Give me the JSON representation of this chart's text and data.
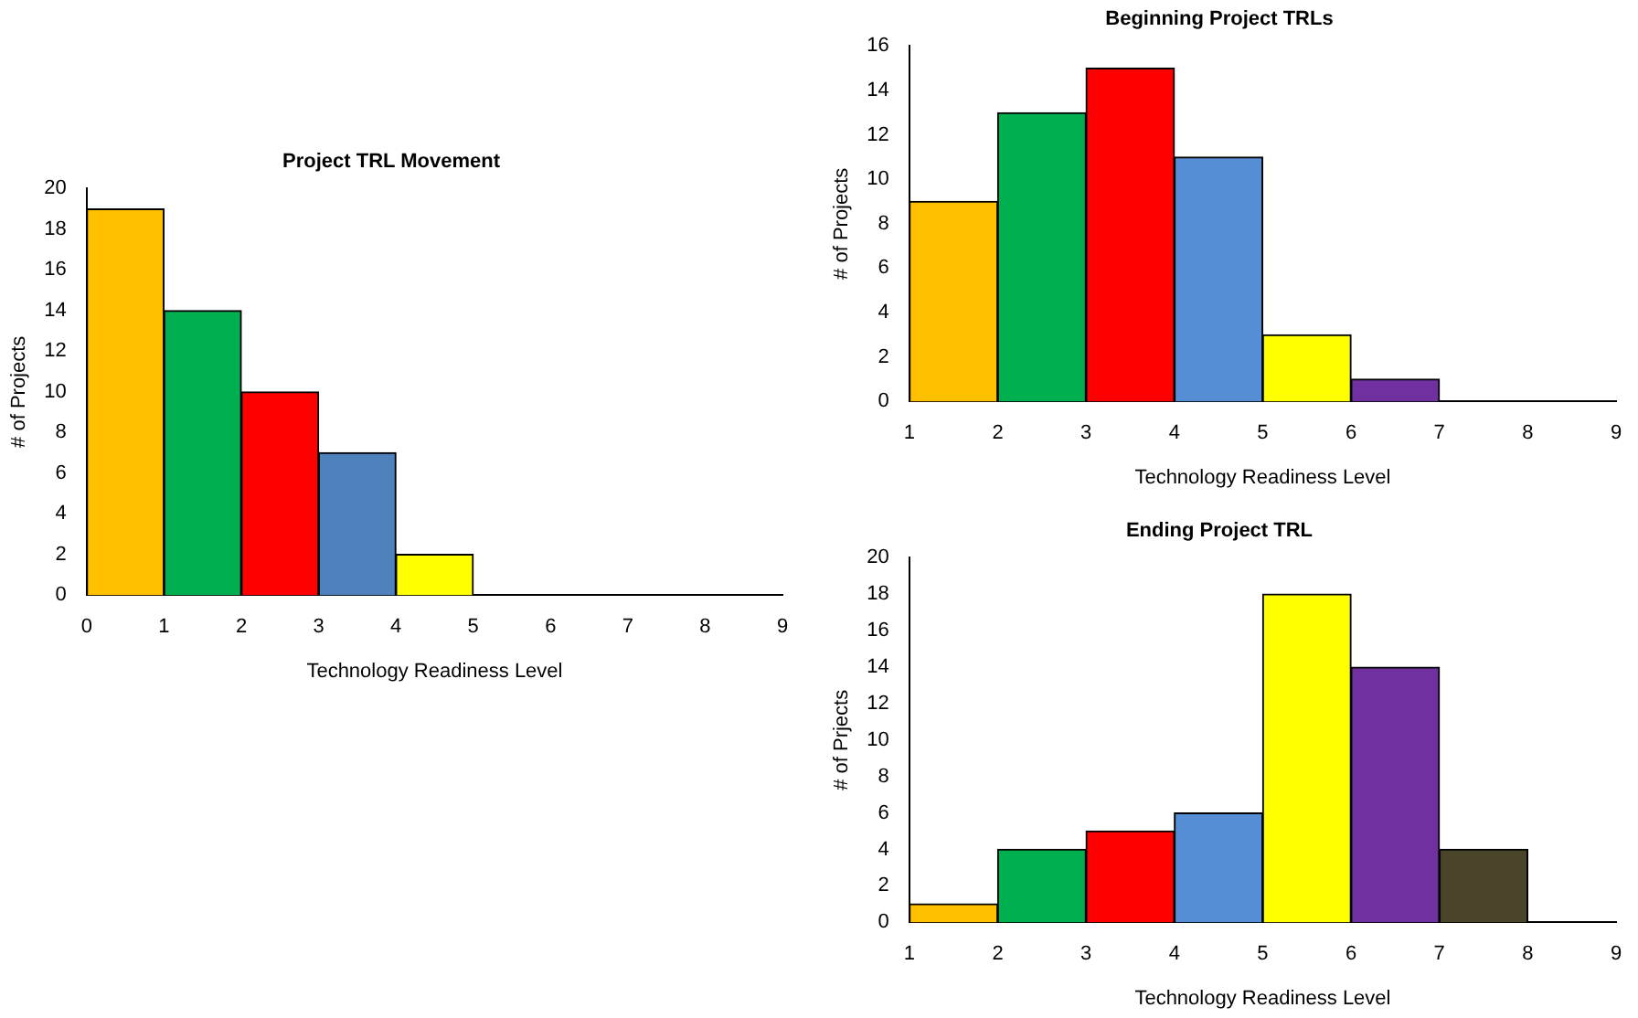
{
  "chart_data": [
    {
      "type": "histogram",
      "title": "Project TRL Movement",
      "xlabel": "Technology Readiness Level",
      "ylabel": "# of Projects",
      "bins": [
        0,
        1,
        2,
        3,
        4,
        5,
        6,
        7,
        8,
        9
      ],
      "values": [
        19,
        14,
        10,
        7,
        2,
        0,
        0,
        0,
        0
      ],
      "colors": [
        "#ffc000",
        "#00b050",
        "#ff0000",
        "#4f81bd",
        "#ffff00",
        "#7030a0",
        "#7030a0",
        "#7030a0",
        "#7030a0"
      ],
      "xlim": [
        0,
        9
      ],
      "xticks": [
        0,
        1,
        2,
        3,
        4,
        5,
        6,
        7,
        8,
        9
      ],
      "ylim": [
        0,
        20
      ],
      "yticks": [
        0,
        2,
        4,
        6,
        8,
        10,
        12,
        14,
        16,
        18,
        20
      ],
      "grid": false
    },
    {
      "type": "histogram",
      "title": "Beginning Project TRLs",
      "xlabel": "Technology Readiness Level",
      "ylabel": "# of Projects",
      "bins": [
        1,
        2,
        3,
        4,
        5,
        6,
        7,
        8,
        9
      ],
      "values": [
        9,
        13,
        15,
        11,
        3,
        1,
        0,
        0
      ],
      "colors": [
        "#ffc000",
        "#00b050",
        "#ff0000",
        "#558ed5",
        "#ffff00",
        "#7030a0",
        "#4a452a",
        "#4a452a"
      ],
      "xlim": [
        1,
        9
      ],
      "xticks": [
        1,
        2,
        3,
        4,
        5,
        6,
        7,
        8,
        9
      ],
      "ylim": [
        0,
        16
      ],
      "yticks": [
        0,
        2,
        4,
        6,
        8,
        10,
        12,
        14,
        16
      ],
      "grid": false
    },
    {
      "type": "histogram",
      "title": "Ending Project TRL",
      "xlabel": "Technology Readiness Level",
      "ylabel": "# of Prjects",
      "bins": [
        1,
        2,
        3,
        4,
        5,
        6,
        7,
        8,
        9
      ],
      "values": [
        1,
        4,
        5,
        6,
        18,
        14,
        4,
        0
      ],
      "colors": [
        "#ffc000",
        "#00b050",
        "#ff0000",
        "#558ed5",
        "#ffff00",
        "#7030a0",
        "#4a452a",
        "#4a452a"
      ],
      "xlim": [
        1,
        9
      ],
      "xticks": [
        1,
        2,
        3,
        4,
        5,
        6,
        7,
        8,
        9
      ],
      "ylim": [
        0,
        20
      ],
      "yticks": [
        0,
        2,
        4,
        6,
        8,
        10,
        12,
        14,
        16,
        18,
        20
      ],
      "grid": false
    }
  ]
}
